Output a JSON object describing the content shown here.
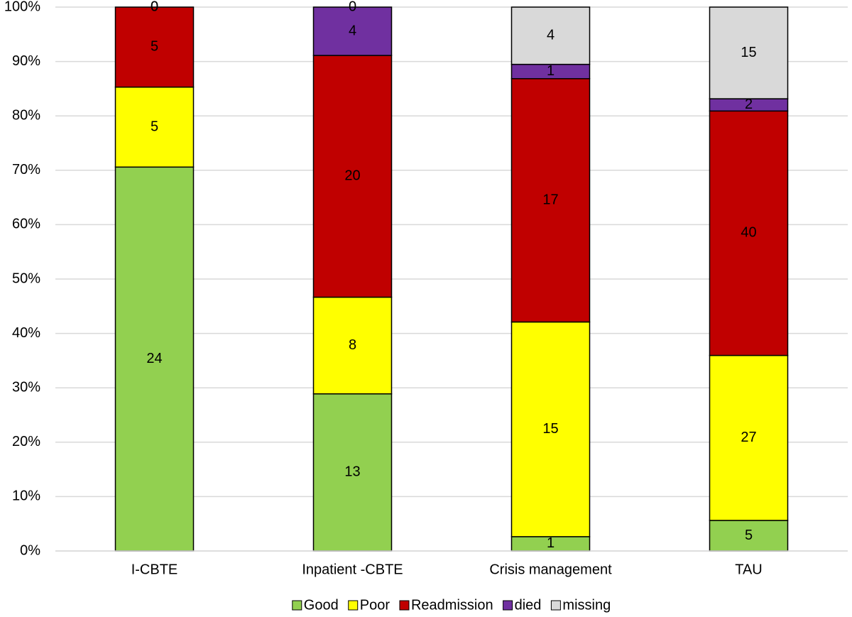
{
  "chart_data": {
    "type": "bar",
    "stacking": "percent",
    "categories": [
      "I-CBTE",
      "Inpatient -CBTE",
      "Crisis management",
      "TAU"
    ],
    "series": [
      {
        "name": "Good",
        "color": "#92d050",
        "values": [
          24,
          13,
          1,
          5
        ]
      },
      {
        "name": "Poor",
        "color": "#ffff00",
        "values": [
          5,
          8,
          15,
          27
        ]
      },
      {
        "name": "Readmission",
        "color": "#c00000",
        "values": [
          5,
          20,
          17,
          40
        ]
      },
      {
        "name": "died",
        "color": "#7030a0",
        "values": [
          0,
          4,
          1,
          2
        ]
      },
      {
        "name": "missing",
        "color": "#d9d9d9",
        "values": [
          0,
          0,
          4,
          15
        ]
      }
    ],
    "ylim": [
      0,
      100
    ],
    "yticks": [
      {
        "value": 0,
        "label": "0%"
      },
      {
        "value": 10,
        "label": "10%"
      },
      {
        "value": 20,
        "label": "20%"
      },
      {
        "value": 30,
        "label": "30%"
      },
      {
        "value": 40,
        "label": "40%"
      },
      {
        "value": 50,
        "label": "50%"
      },
      {
        "value": 60,
        "label": "60%"
      },
      {
        "value": 70,
        "label": "70%"
      },
      {
        "value": 80,
        "label": "80%"
      },
      {
        "value": 90,
        "label": "90%"
      },
      {
        "value": 100,
        "label": "100%"
      }
    ],
    "grid": true,
    "legend": "bottom"
  }
}
